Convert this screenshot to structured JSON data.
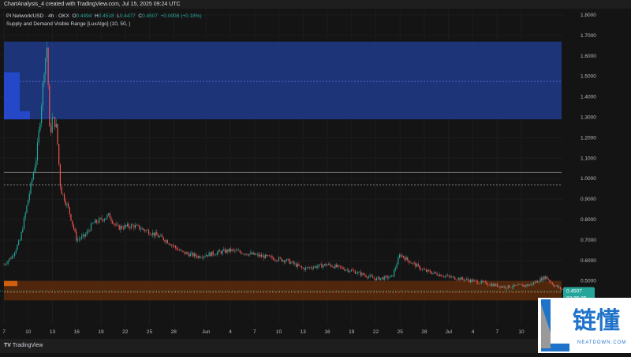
{
  "header": {
    "caption": "ChartAnalysis_4 created with TradingView.com, Jul 15, 2025 09:24 UTC"
  },
  "legend": {
    "symbol": "PI Network/USD · 4h · OKX",
    "o_label": "O",
    "o": "0.4494",
    "h_label": "H",
    "h": "0.4518",
    "l_label": "L",
    "l": "0.4477",
    "c_label": "C",
    "c": "0.4507",
    "change": "+0.0008 (+0.18%)",
    "indicator": "Supply and Demand Visible Range [LuxAlgo] (10, 50, )"
  },
  "footer": {
    "brand": "TradingView",
    "brand_icon": "tradingview-logo-icon"
  },
  "watermark": {
    "text_cn": "链懂",
    "text_en": "NEATDOWN.COM"
  },
  "chart_data": {
    "type": "candlestick",
    "ylim": [
      0.4,
      1.85
    ],
    "y_ticks": [
      "1.8000",
      "1.7000",
      "1.6000",
      "1.5000",
      "1.4000",
      "1.3000",
      "1.2000",
      "1.1000",
      "1.0000",
      "0.9000",
      "0.8000",
      "0.7000",
      "0.6000",
      "0.5000"
    ],
    "x_ticks": [
      "7",
      "10",
      "13",
      "16",
      "19",
      "22",
      "25",
      "28",
      "Jun",
      "4",
      "7",
      "10",
      "13",
      "16",
      "19",
      "22",
      "25",
      "28",
      "Jul",
      "4",
      "7",
      "10"
    ],
    "x_tick_dates": [
      "2025-05-07",
      "2025-05-10",
      "2025-05-13",
      "2025-05-16",
      "2025-05-19",
      "2025-05-22",
      "2025-05-25",
      "2025-05-28",
      "2025-06-01",
      "2025-06-04",
      "2025-06-07",
      "2025-06-10",
      "2025-06-13",
      "2025-06-16",
      "2025-06-19",
      "2025-06-22",
      "2025-06-25",
      "2025-06-28",
      "2025-07-01",
      "2025-07-04",
      "2025-07-07",
      "2025-07-10"
    ],
    "price_path": [
      [
        "2025-05-07",
        0.58
      ],
      [
        "2025-05-08",
        0.62
      ],
      [
        "2025-05-09",
        0.7
      ],
      [
        "2025-05-10",
        0.9
      ],
      [
        "2025-05-11",
        1.1
      ],
      [
        "2025-05-11T12:00",
        1.3
      ],
      [
        "2025-05-12",
        1.55
      ],
      [
        "2025-05-12T08:00",
        1.65
      ],
      [
        "2025-05-12T16:00",
        1.2
      ],
      [
        "2025-05-13",
        1.3
      ],
      [
        "2025-05-13T12:00",
        1.25
      ],
      [
        "2025-05-14",
        0.95
      ],
      [
        "2025-05-15",
        0.85
      ],
      [
        "2025-05-16",
        0.7
      ],
      [
        "2025-05-17",
        0.72
      ],
      [
        "2025-05-18",
        0.78
      ],
      [
        "2025-05-20",
        0.82
      ],
      [
        "2025-05-21",
        0.76
      ],
      [
        "2025-05-23",
        0.77
      ],
      [
        "2025-05-25",
        0.74
      ],
      [
        "2025-05-27",
        0.7
      ],
      [
        "2025-05-29",
        0.64
      ],
      [
        "2025-05-31",
        0.62
      ],
      [
        "2025-06-04",
        0.65
      ],
      [
        "2025-06-08",
        0.62
      ],
      [
        "2025-06-11",
        0.6
      ],
      [
        "2025-06-13",
        0.56
      ],
      [
        "2025-06-16",
        0.58
      ],
      [
        "2025-06-19",
        0.55
      ],
      [
        "2025-06-22",
        0.51
      ],
      [
        "2025-06-24",
        0.52
      ],
      [
        "2025-06-25",
        0.63
      ],
      [
        "2025-06-26",
        0.6
      ],
      [
        "2025-06-28",
        0.55
      ],
      [
        "2025-07-01",
        0.52
      ],
      [
        "2025-07-04",
        0.5
      ],
      [
        "2025-07-08",
        0.47
      ],
      [
        "2025-07-11",
        0.48
      ],
      [
        "2025-07-13",
        0.52
      ],
      [
        "2025-07-14",
        0.48
      ],
      [
        "2025-07-15T09:00",
        0.4507
      ]
    ],
    "zones": [
      {
        "type": "supply",
        "top": 1.67,
        "bottom": 1.29,
        "mid": 1.475,
        "color": "#1e3a8a"
      },
      {
        "type": "demand",
        "top": 0.5,
        "bottom": 0.405,
        "mid": 0.445,
        "color": "#5a2a0a"
      }
    ],
    "levels": [
      {
        "price": 1.03,
        "style": "solid"
      },
      {
        "price": 0.97,
        "style": "dotted"
      }
    ],
    "last_price": {
      "value": "0.4507",
      "countdown": "02:35:29",
      "color": "#26a69a"
    },
    "up_color": "#26a69a",
    "down_color": "#ef5350"
  }
}
